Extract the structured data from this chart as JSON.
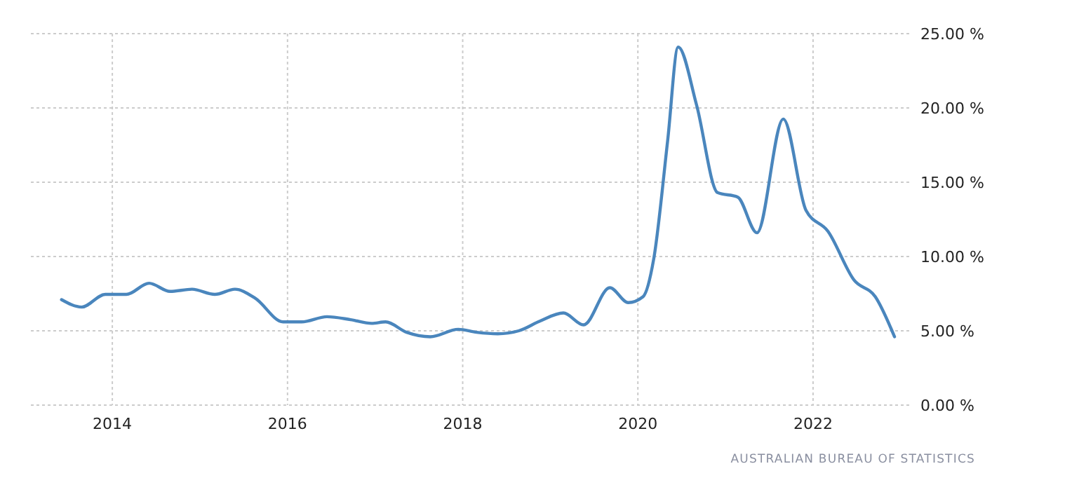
{
  "chart_data": {
    "type": "line",
    "x": [
      2013.42,
      2013.65,
      2013.92,
      2014.16,
      2014.42,
      2014.66,
      2014.91,
      2015.17,
      2015.4,
      2015.63,
      2015.95,
      2016.16,
      2016.45,
      2016.72,
      2016.96,
      2017.12,
      2017.36,
      2017.63,
      2017.95,
      2018.16,
      2018.4,
      2018.64,
      2018.88,
      2019.15,
      2019.38,
      2019.68,
      2019.89,
      2020.06,
      2020.18,
      2020.34,
      2020.46,
      2020.67,
      2020.91,
      2021.14,
      2021.36,
      2021.66,
      2021.92,
      2022.17,
      2022.47,
      2022.71,
      2022.93
    ],
    "series": [
      {
        "color": "#4a86bd",
        "values": [
          7.1,
          6.6,
          7.45,
          7.45,
          8.2,
          7.65,
          7.8,
          7.45,
          7.8,
          7.2,
          5.6,
          5.6,
          5.95,
          5.75,
          5.5,
          5.6,
          4.9,
          4.6,
          5.1,
          4.9,
          4.8,
          5.0,
          5.65,
          6.2,
          5.4,
          7.9,
          6.9,
          7.3,
          9.8,
          17.8,
          24.1,
          20.2,
          14.3,
          14.0,
          11.6,
          19.25,
          13.1,
          11.7,
          8.4,
          7.3,
          4.6
        ]
      }
    ],
    "xlim": [
      2013.07,
      2023.13
    ],
    "xticks": [
      2014,
      2016,
      2018,
      2020,
      2022
    ],
    "ylim": [
      0,
      25
    ],
    "yticks": [
      {
        "value": 0,
        "label": "0.00 %"
      },
      {
        "value": 5,
        "label": "5.00 %"
      },
      {
        "value": 10,
        "label": "10.00 %"
      },
      {
        "value": 15,
        "label": "15.00 %"
      },
      {
        "value": 20,
        "label": "20.00 %"
      },
      {
        "value": 25,
        "label": "25.00 %"
      }
    ],
    "grid": true,
    "line_style": "solid",
    "annotations": [
      "AUSTRALIAN BUREAU OF STATISTICS"
    ]
  }
}
